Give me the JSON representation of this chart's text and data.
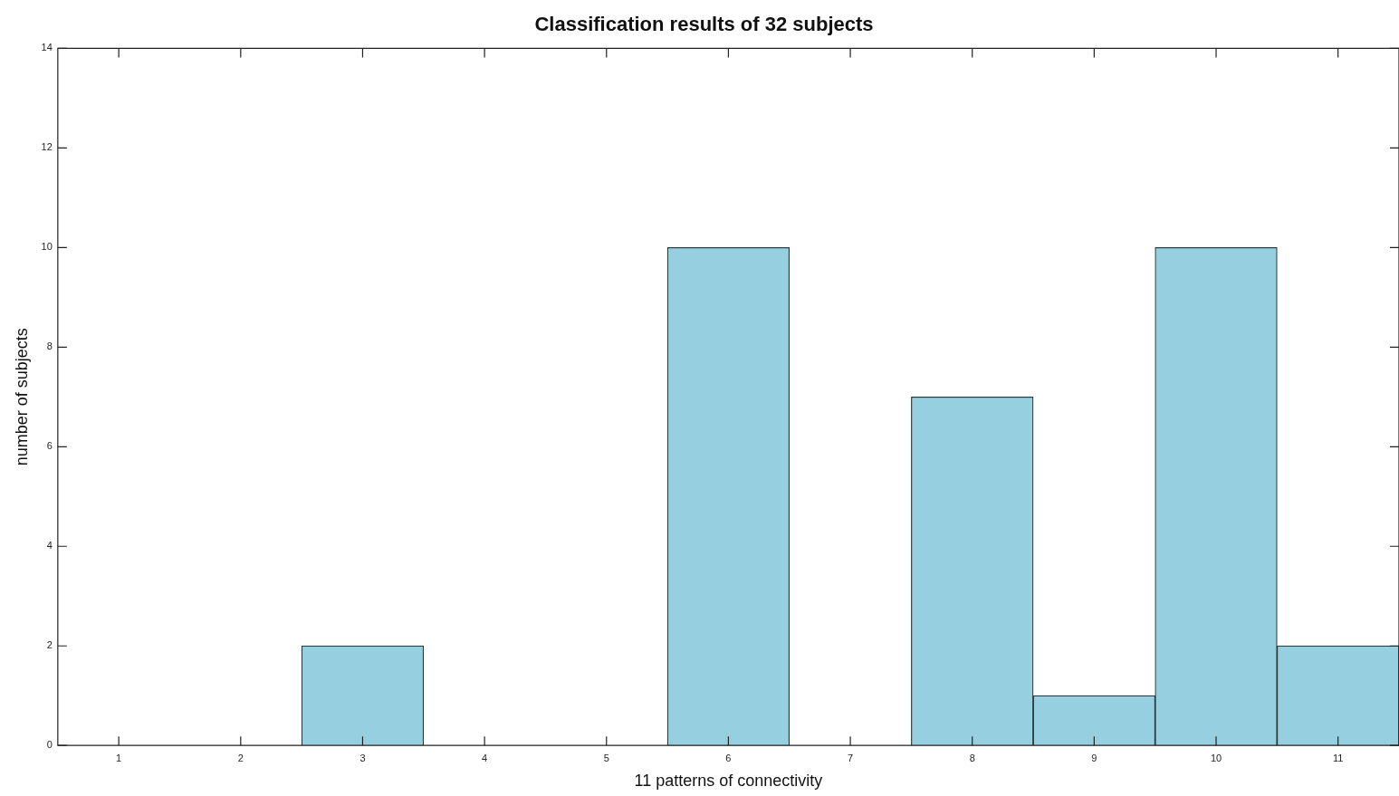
{
  "chart_data": {
    "type": "bar",
    "title": "Classification results of 32 subjects",
    "xlabel": "11 patterns of connectivity",
    "ylabel": "number of subjects",
    "categories": [
      "1",
      "2",
      "3",
      "4",
      "5",
      "6",
      "7",
      "8",
      "9",
      "10",
      "11"
    ],
    "values": [
      0,
      0,
      2,
      0,
      0,
      10,
      0,
      7,
      1,
      10,
      2
    ],
    "color": "#96d0e0",
    "ylim": [
      0,
      14
    ],
    "yticks": [
      0,
      2,
      4,
      6,
      8,
      10,
      12,
      14
    ],
    "grid": false,
    "legend": false
  }
}
